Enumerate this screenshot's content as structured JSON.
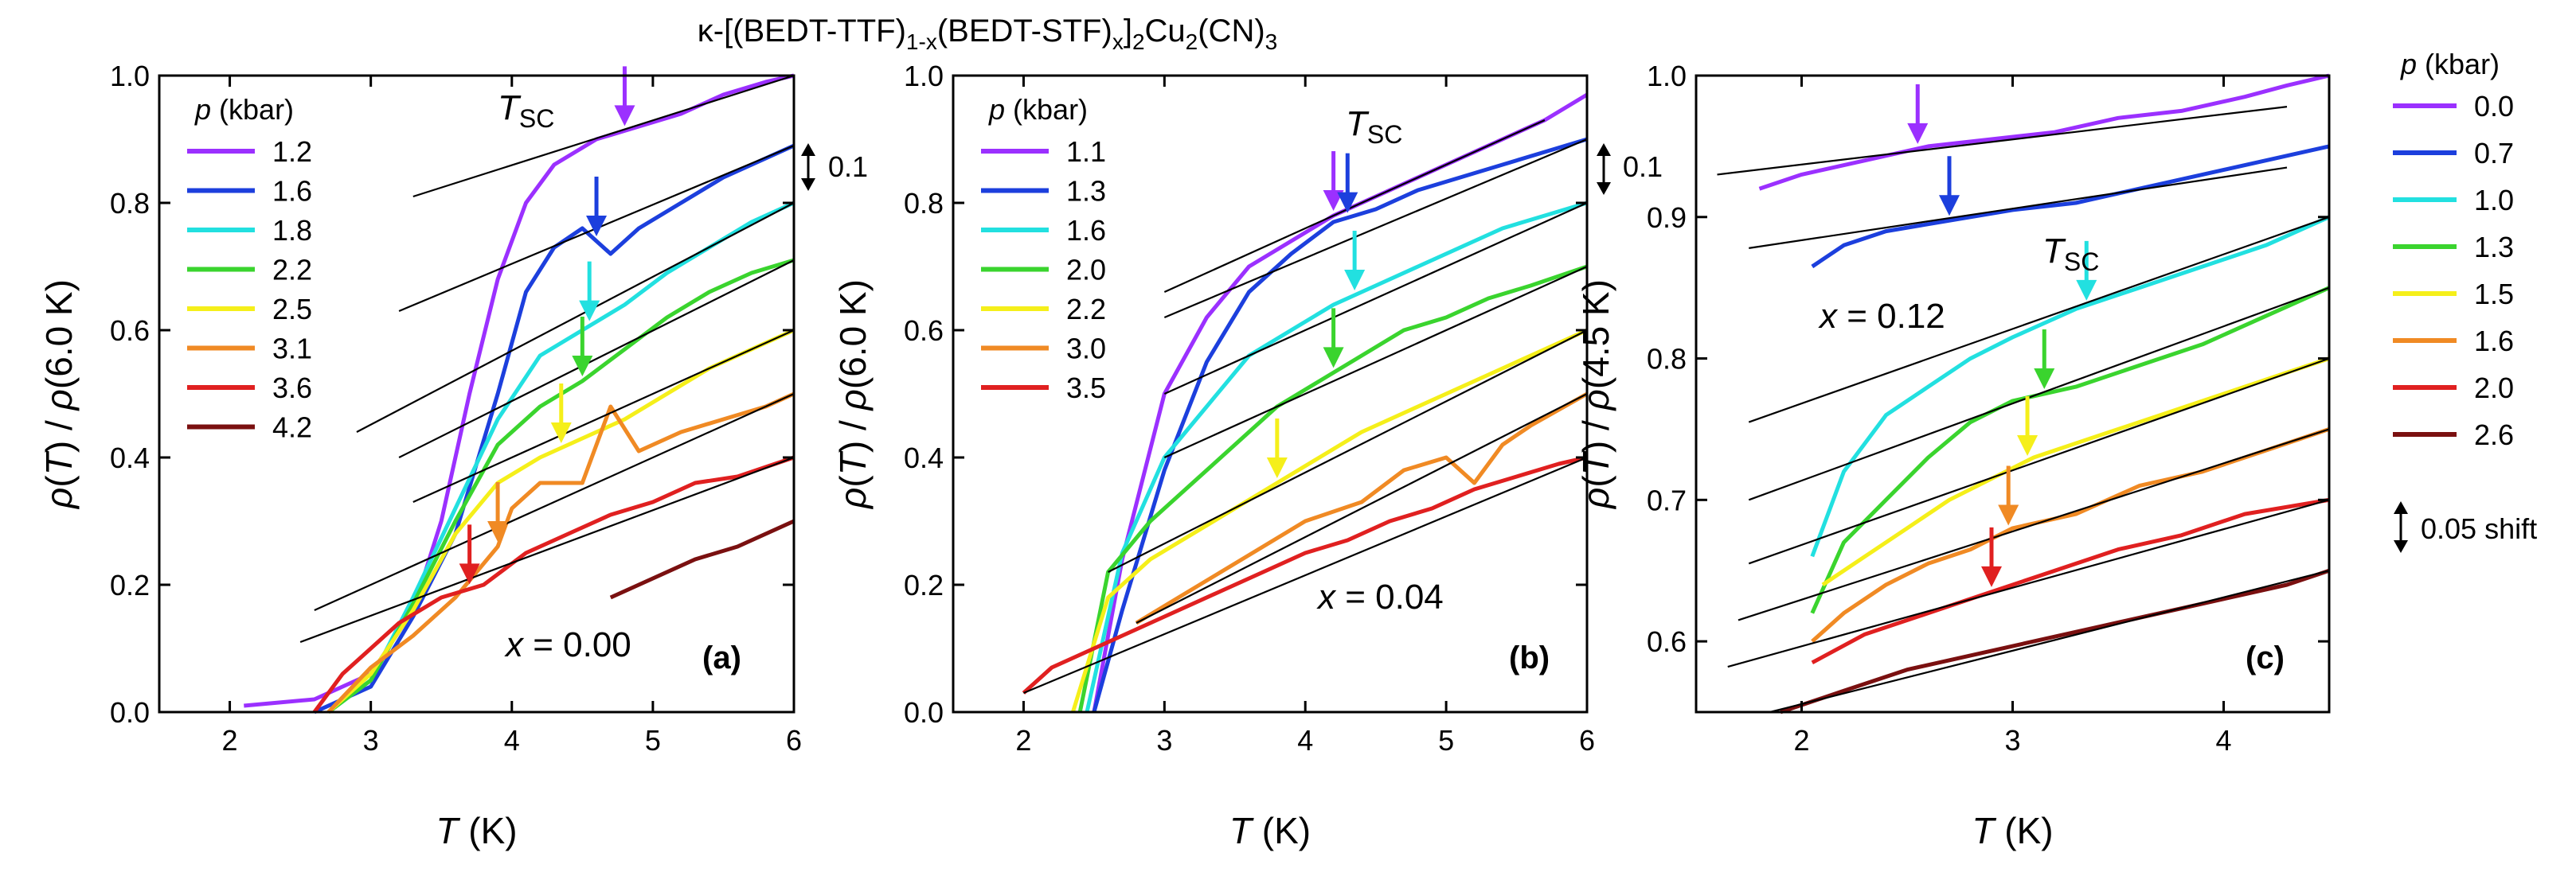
{
  "figure_title": "κ-[(BEDT-TTF)1-x(BEDT-STF)x]2Cu2(CN)3",
  "chart_data": [
    {
      "type": "line",
      "panel_label": "(a)",
      "composition": "x = 0.00",
      "xlabel": "T (K)",
      "ylabel": "ρ(T) / ρ(6.0 K)",
      "xlim": [
        1.5,
        6.0
      ],
      "ylim": [
        0.0,
        1.0
      ],
      "xticks": [
        2,
        3,
        4,
        5,
        6
      ],
      "yticks": [
        0.0,
        0.2,
        0.4,
        0.6,
        0.8,
        1.0
      ],
      "legend_title": "p (kbar)",
      "tsc_label": "TSC",
      "scale_bar_label": "0.1",
      "series": [
        {
          "name": "1.2",
          "color": "#9b30ff",
          "x": [
            2.1,
            2.6,
            3.0,
            3.3,
            3.5,
            3.7,
            3.9,
            4.1,
            4.3,
            4.6,
            4.9,
            5.2,
            5.5,
            5.8,
            6.0
          ],
          "y": [
            0.01,
            0.02,
            0.06,
            0.16,
            0.3,
            0.5,
            0.68,
            0.8,
            0.86,
            0.9,
            0.92,
            0.94,
            0.97,
            0.99,
            1.0
          ],
          "tsc": 4.8,
          "fit": [
            [
              3.3,
              0.81
            ],
            [
              6.0,
              1.0
            ]
          ]
        },
        {
          "name": "1.6",
          "color": "#1c3fdd",
          "x": [
            2.6,
            3.0,
            3.3,
            3.6,
            3.9,
            4.1,
            4.3,
            4.5,
            4.7,
            4.9,
            5.2,
            5.5,
            5.8,
            6.0
          ],
          "y": [
            0.0,
            0.04,
            0.15,
            0.28,
            0.5,
            0.66,
            0.73,
            0.76,
            0.72,
            0.76,
            0.8,
            0.84,
            0.87,
            0.89
          ],
          "tsc": 4.6,
          "fit": [
            [
              3.2,
              0.63
            ],
            [
              6.0,
              0.89
            ]
          ]
        },
        {
          "name": "1.8",
          "color": "#22e0e0",
          "x": [
            2.7,
            3.0,
            3.3,
            3.6,
            3.9,
            4.2,
            4.5,
            4.8,
            5.1,
            5.4,
            5.7,
            6.0
          ],
          "y": [
            0.0,
            0.05,
            0.18,
            0.32,
            0.46,
            0.56,
            0.6,
            0.64,
            0.69,
            0.73,
            0.77,
            0.8
          ],
          "tsc": 4.55,
          "fit": [
            [
              2.9,
              0.44
            ],
            [
              6.0,
              0.8
            ]
          ]
        },
        {
          "name": "2.2",
          "color": "#3ad42e",
          "x": [
            2.7,
            3.0,
            3.3,
            3.6,
            3.9,
            4.2,
            4.5,
            4.8,
            5.1,
            5.4,
            5.7,
            6.0
          ],
          "y": [
            0.0,
            0.05,
            0.17,
            0.3,
            0.42,
            0.48,
            0.52,
            0.57,
            0.62,
            0.66,
            0.69,
            0.71
          ],
          "tsc": 4.5,
          "fit": [
            [
              3.2,
              0.4
            ],
            [
              6.0,
              0.71
            ]
          ]
        },
        {
          "name": "2.5",
          "color": "#f5ef1a",
          "x": [
            2.7,
            3.0,
            3.3,
            3.6,
            3.9,
            4.2,
            4.5,
            4.8,
            5.1,
            5.4,
            5.7,
            6.0
          ],
          "y": [
            0.0,
            0.06,
            0.16,
            0.28,
            0.36,
            0.4,
            0.43,
            0.46,
            0.5,
            0.54,
            0.57,
            0.6
          ],
          "tsc": 4.35,
          "fit": [
            [
              3.3,
              0.33
            ],
            [
              6.0,
              0.6
            ]
          ]
        },
        {
          "name": "3.1",
          "color": "#f08a24",
          "x": [
            2.7,
            3.0,
            3.3,
            3.6,
            3.9,
            4.0,
            4.2,
            4.5,
            4.7,
            4.9,
            5.2,
            5.5,
            5.8,
            6.0
          ],
          "y": [
            0.0,
            0.07,
            0.12,
            0.18,
            0.26,
            0.32,
            0.36,
            0.36,
            0.48,
            0.41,
            0.44,
            0.46,
            0.48,
            0.5
          ],
          "tsc": 3.9,
          "fit": [
            [
              2.6,
              0.16
            ],
            [
              6.0,
              0.5
            ]
          ]
        },
        {
          "name": "3.6",
          "color": "#e02020",
          "x": [
            2.6,
            2.8,
            3.0,
            3.2,
            3.5,
            3.8,
            4.1,
            4.4,
            4.7,
            5.0,
            5.3,
            5.6,
            6.0
          ],
          "y": [
            0.0,
            0.06,
            0.1,
            0.14,
            0.18,
            0.2,
            0.25,
            0.28,
            0.31,
            0.33,
            0.36,
            0.37,
            0.4
          ],
          "tsc": 3.7,
          "fit": [
            [
              2.5,
              0.11
            ],
            [
              6.0,
              0.4
            ]
          ]
        },
        {
          "name": "4.2",
          "color": "#7a1010",
          "x": [
            4.7,
            5.0,
            5.3,
            5.6,
            6.0
          ],
          "y": [
            0.18,
            0.21,
            0.24,
            0.26,
            0.3
          ],
          "fit": []
        }
      ]
    },
    {
      "type": "line",
      "panel_label": "(b)",
      "composition": "x = 0.04",
      "xlabel": "T (K)",
      "ylabel": "ρ(T) / ρ(6.0 K)",
      "xlim": [
        1.5,
        6.0
      ],
      "ylim": [
        0.0,
        1.0
      ],
      "xticks": [
        2,
        3,
        4,
        5,
        6
      ],
      "yticks": [
        0.0,
        0.2,
        0.4,
        0.6,
        0.8,
        1.0
      ],
      "legend_title": "p (kbar)",
      "tsc_label": "TSC",
      "scale_bar_label": "0.1",
      "series": [
        {
          "name": "1.1",
          "color": "#9b30ff",
          "x": [
            2.5,
            2.7,
            3.0,
            3.3,
            3.6,
            3.9,
            4.2,
            4.5,
            4.8,
            5.1,
            5.4,
            5.7,
            6.0
          ],
          "y": [
            0.0,
            0.24,
            0.5,
            0.62,
            0.7,
            0.74,
            0.78,
            0.81,
            0.84,
            0.87,
            0.9,
            0.93,
            0.97
          ],
          "tsc": 4.2,
          "fit": [
            [
              3.0,
              0.66
            ],
            [
              5.7,
              0.93
            ]
          ]
        },
        {
          "name": "1.3",
          "color": "#1c3fdd",
          "x": [
            2.5,
            2.7,
            3.0,
            3.3,
            3.6,
            3.9,
            4.2,
            4.5,
            4.8,
            5.1,
            5.4,
            5.7,
            6.0
          ],
          "y": [
            0.0,
            0.16,
            0.38,
            0.55,
            0.66,
            0.72,
            0.77,
            0.79,
            0.82,
            0.84,
            0.86,
            0.88,
            0.9
          ],
          "tsc": 4.3,
          "fit": [
            [
              3.0,
              0.62
            ],
            [
              6.0,
              0.9
            ]
          ]
        },
        {
          "name": "1.6",
          "color": "#22e0e0",
          "x": [
            2.45,
            2.7,
            3.0,
            3.3,
            3.6,
            3.9,
            4.2,
            4.5,
            4.8,
            5.1,
            5.4,
            5.7,
            6.0
          ],
          "y": [
            0.0,
            0.25,
            0.4,
            0.48,
            0.56,
            0.6,
            0.64,
            0.67,
            0.7,
            0.73,
            0.76,
            0.78,
            0.8
          ],
          "tsc": 4.35,
          "fit": [
            [
              3.0,
              0.5
            ],
            [
              6.0,
              0.8
            ]
          ]
        },
        {
          "name": "2.0",
          "color": "#3ad42e",
          "x": [
            2.4,
            2.6,
            2.9,
            3.2,
            3.5,
            3.8,
            4.1,
            4.4,
            4.7,
            5.0,
            5.3,
            5.6,
            6.0
          ],
          "y": [
            0.0,
            0.22,
            0.3,
            0.36,
            0.42,
            0.48,
            0.52,
            0.56,
            0.6,
            0.62,
            0.65,
            0.67,
            0.7
          ],
          "tsc": 4.2,
          "fit": [
            [
              3.0,
              0.4
            ],
            [
              6.0,
              0.7
            ]
          ]
        },
        {
          "name": "2.2",
          "color": "#f5ef1a",
          "x": [
            2.35,
            2.6,
            2.9,
            3.2,
            3.5,
            3.8,
            4.1,
            4.4,
            4.7,
            5.0,
            5.3,
            5.6,
            6.0
          ],
          "y": [
            0.0,
            0.18,
            0.24,
            0.28,
            0.32,
            0.36,
            0.4,
            0.44,
            0.47,
            0.5,
            0.53,
            0.56,
            0.6
          ],
          "tsc": 3.8,
          "fit": [
            [
              2.6,
              0.22
            ],
            [
              6.0,
              0.6
            ]
          ]
        },
        {
          "name": "3.0",
          "color": "#f08a24",
          "x": [
            2.8,
            3.1,
            3.4,
            3.7,
            4.0,
            4.4,
            4.7,
            5.0,
            5.2,
            5.4,
            5.6,
            6.0
          ],
          "y": [
            0.14,
            0.18,
            0.22,
            0.26,
            0.3,
            0.33,
            0.38,
            0.4,
            0.36,
            0.42,
            0.45,
            0.5
          ],
          "fit": [
            [
              2.8,
              0.14
            ],
            [
              6.0,
              0.5
            ]
          ]
        },
        {
          "name": "3.5",
          "color": "#e02020",
          "x": [
            2.0,
            2.2,
            2.5,
            2.8,
            3.1,
            3.4,
            3.7,
            4.0,
            4.3,
            4.6,
            4.9,
            5.2,
            5.5,
            5.8,
            6.0
          ],
          "y": [
            0.03,
            0.07,
            0.1,
            0.13,
            0.16,
            0.19,
            0.22,
            0.25,
            0.27,
            0.3,
            0.32,
            0.35,
            0.37,
            0.39,
            0.4
          ],
          "fit": [
            [
              2.0,
              0.03
            ],
            [
              6.0,
              0.4
            ]
          ]
        }
      ]
    },
    {
      "type": "line",
      "panel_label": "(c)",
      "composition": "x = 0.12",
      "xlabel": "T (K)",
      "ylabel": "ρ(T) / ρ(4.5 K)",
      "xlim": [
        1.5,
        4.5
      ],
      "ylim": [
        0.55,
        1.0
      ],
      "xticks": [
        2,
        3,
        4
      ],
      "yticks": [
        0.6,
        0.7,
        0.8,
        0.9,
        1.0
      ],
      "legend_title": "p (kbar)",
      "tsc_label": "TSC",
      "scale_bar_label": "0.05 shift",
      "series": [
        {
          "name": "0.0",
          "color": "#9b30ff",
          "x": [
            1.8,
            2.0,
            2.3,
            2.6,
            2.9,
            3.2,
            3.5,
            3.8,
            4.1,
            4.3,
            4.5
          ],
          "y": [
            0.92,
            0.93,
            0.94,
            0.95,
            0.955,
            0.96,
            0.97,
            0.975,
            0.985,
            0.993,
            1.0
          ],
          "tsc": 2.55,
          "fit": [
            [
              1.6,
              0.93
            ],
            [
              4.3,
              0.978
            ]
          ]
        },
        {
          "name": "0.7",
          "color": "#1c3fdd",
          "x": [
            2.05,
            2.2,
            2.4,
            2.6,
            2.8,
            3.0,
            3.3,
            3.6,
            3.9,
            4.2,
            4.5
          ],
          "y": [
            0.865,
            0.88,
            0.89,
            0.895,
            0.9,
            0.905,
            0.91,
            0.92,
            0.93,
            0.94,
            0.95
          ],
          "tsc": 2.7,
          "fit": [
            [
              1.75,
              0.878
            ],
            [
              4.3,
              0.935
            ]
          ]
        },
        {
          "name": "1.0",
          "color": "#22e0e0",
          "x": [
            2.05,
            2.2,
            2.4,
            2.6,
            2.8,
            3.0,
            3.3,
            3.6,
            3.9,
            4.2,
            4.5
          ],
          "y": [
            0.66,
            0.72,
            0.76,
            0.78,
            0.8,
            0.815,
            0.835,
            0.85,
            0.865,
            0.88,
            0.9
          ],
          "tsc": 3.35,
          "fit": [
            [
              1.75,
              0.755
            ],
            [
              4.5,
              0.9
            ]
          ]
        },
        {
          "name": "1.3",
          "color": "#3ad42e",
          "x": [
            2.05,
            2.2,
            2.4,
            2.6,
            2.8,
            3.0,
            3.3,
            3.6,
            3.9,
            4.2,
            4.5
          ],
          "y": [
            0.62,
            0.67,
            0.7,
            0.73,
            0.755,
            0.77,
            0.78,
            0.795,
            0.81,
            0.83,
            0.85
          ],
          "tsc": 3.15,
          "fit": [
            [
              1.75,
              0.7
            ],
            [
              4.5,
              0.85
            ]
          ]
        },
        {
          "name": "1.5",
          "color": "#f5ef1a",
          "x": [
            2.1,
            2.3,
            2.5,
            2.7,
            2.9,
            3.1,
            3.4,
            3.7,
            4.0,
            4.3,
            4.5
          ],
          "y": [
            0.64,
            0.66,
            0.68,
            0.7,
            0.715,
            0.73,
            0.745,
            0.76,
            0.775,
            0.79,
            0.8
          ],
          "tsc": 3.07,
          "fit": [
            [
              1.75,
              0.655
            ],
            [
              4.5,
              0.8
            ]
          ]
        },
        {
          "name": "1.6",
          "color": "#f08a24",
          "x": [
            2.05,
            2.2,
            2.4,
            2.6,
            2.8,
            3.0,
            3.3,
            3.6,
            3.9,
            4.2,
            4.5
          ],
          "y": [
            0.6,
            0.62,
            0.64,
            0.655,
            0.665,
            0.68,
            0.69,
            0.71,
            0.72,
            0.735,
            0.75
          ],
          "tsc": 2.98,
          "fit": [
            [
              1.7,
              0.615
            ],
            [
              4.5,
              0.75
            ]
          ]
        },
        {
          "name": "2.0",
          "color": "#e02020",
          "x": [
            2.05,
            2.3,
            2.6,
            2.9,
            3.2,
            3.5,
            3.8,
            4.1,
            4.5
          ],
          "y": [
            0.585,
            0.605,
            0.62,
            0.635,
            0.65,
            0.665,
            0.675,
            0.69,
            0.7
          ],
          "tsc": 2.9,
          "fit": [
            [
              1.65,
              0.582
            ],
            [
              4.5,
              0.7
            ]
          ]
        },
        {
          "name": "2.6",
          "color": "#7a1010",
          "x": [
            1.9,
            2.2,
            2.5,
            2.8,
            3.1,
            3.4,
            3.7,
            4.0,
            4.3,
            4.5
          ],
          "y": [
            0.55,
            0.565,
            0.58,
            0.59,
            0.6,
            0.61,
            0.62,
            0.63,
            0.64,
            0.65
          ],
          "fit": [
            [
              1.85,
              0.55
            ],
            [
              4.5,
              0.65
            ]
          ]
        }
      ]
    }
  ]
}
